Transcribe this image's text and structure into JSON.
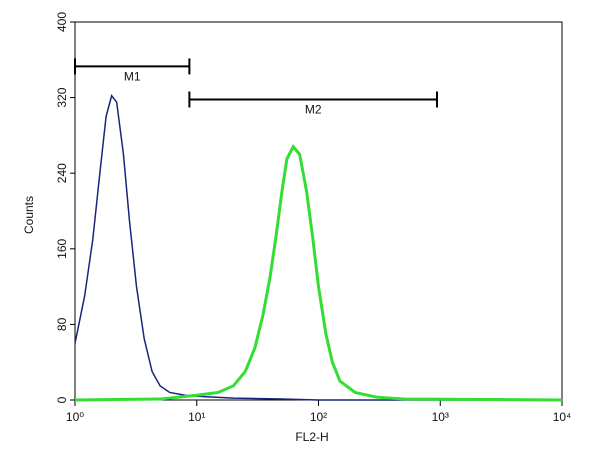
{
  "chart_data": {
    "type": "line",
    "xlabel": "FL2-H",
    "ylabel": "Counts",
    "xscale": "log",
    "xlim": [
      1,
      10000
    ],
    "xticks": [
      {
        "value": 1,
        "label": "10⁰"
      },
      {
        "value": 10,
        "label": "10¹"
      },
      {
        "value": 100,
        "label": "10²"
      },
      {
        "value": 1000,
        "label": "10³"
      },
      {
        "value": 10000,
        "label": "10⁴"
      }
    ],
    "ylim": [
      0,
      400
    ],
    "yticks": [
      0,
      80,
      160,
      240,
      320,
      400
    ],
    "series": [
      {
        "color": "#1a237e",
        "x": [
          1,
          1.2,
          1.4,
          1.6,
          1.8,
          2.0,
          2.2,
          2.5,
          2.8,
          3.2,
          3.7,
          4.3,
          5,
          6,
          8,
          10,
          20,
          50,
          100,
          10000
        ],
        "values": [
          60,
          110,
          170,
          240,
          300,
          322,
          315,
          260,
          190,
          120,
          65,
          30,
          15,
          8,
          5,
          4,
          2,
          1,
          0,
          0
        ]
      },
      {
        "color": "#33dd33",
        "x": [
          1,
          5,
          10,
          15,
          20,
          25,
          30,
          35,
          40,
          45,
          50,
          55,
          62,
          70,
          80,
          90,
          100,
          115,
          130,
          150,
          200,
          300,
          500,
          10000
        ],
        "values": [
          0,
          1,
          5,
          8,
          15,
          30,
          55,
          90,
          130,
          175,
          220,
          255,
          268,
          260,
          220,
          170,
          120,
          70,
          40,
          20,
          8,
          3,
          1,
          0
        ]
      }
    ],
    "markers": [
      {
        "label": "M1",
        "x": [
          1,
          8.7
        ],
        "y": 353
      },
      {
        "label": "M2",
        "x": [
          8.7,
          940
        ],
        "y": 318
      }
    ]
  }
}
